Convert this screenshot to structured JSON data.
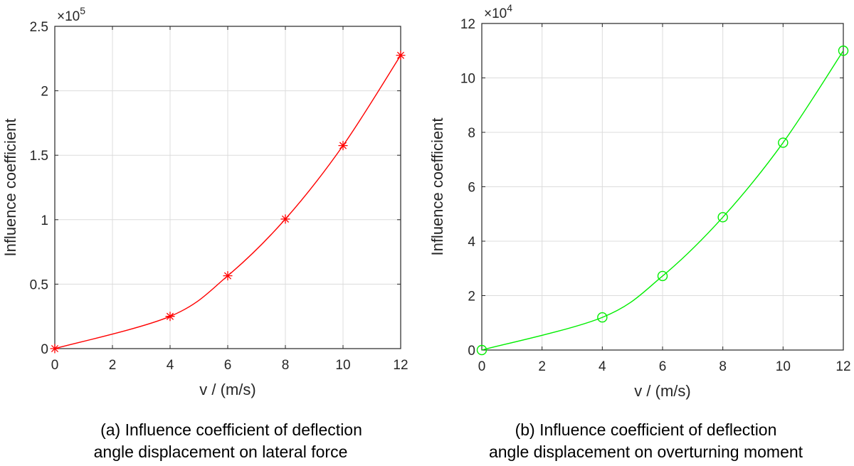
{
  "chart_data": [
    {
      "type": "line",
      "id": "a",
      "x": [
        0,
        4,
        6,
        8,
        10,
        12
      ],
      "series": [
        {
          "name": "lateral force",
          "values": [
            0,
            0.25,
            0.565,
            1.005,
            1.575,
            2.275
          ],
          "color": "#ff0000",
          "marker": "asterisk"
        }
      ],
      "xlabel": "v / (m/s)",
      "ylabel": "Influence coefficient",
      "xlim": [
        0,
        12
      ],
      "ylim": [
        0,
        2.5
      ],
      "xticks": [
        0,
        2,
        4,
        6,
        8,
        10,
        12
      ],
      "yticks": [
        0,
        0.5,
        1,
        1.5,
        2,
        2.5
      ],
      "ytick_labels": [
        "0",
        "0.5",
        "1",
        "1.5",
        "2",
        "2.5"
      ],
      "exponent": {
        "base": "×10",
        "power": "5"
      },
      "grid": true,
      "caption": [
        "(a) Influence coefficient of deflection",
        "angle displacement on lateral force"
      ]
    },
    {
      "type": "line",
      "id": "b",
      "x": [
        0,
        4,
        6,
        8,
        10,
        12
      ],
      "series": [
        {
          "name": "overturning moment",
          "values": [
            0,
            1.2,
            2.72,
            4.88,
            7.62,
            11.0
          ],
          "color": "#00ee00",
          "marker": "circle"
        }
      ],
      "xlabel": "v / (m/s)",
      "ylabel": "Influence coefficient",
      "xlim": [
        0,
        12
      ],
      "ylim": [
        0,
        12
      ],
      "xticks": [
        0,
        2,
        4,
        6,
        8,
        10,
        12
      ],
      "yticks": [
        0,
        2,
        4,
        6,
        8,
        10,
        12
      ],
      "ytick_labels": [
        "0",
        "2",
        "4",
        "6",
        "8",
        "10",
        "12"
      ],
      "exponent": {
        "base": "×10",
        "power": "4"
      },
      "grid": true,
      "caption": [
        "(b)  Influence coefficient of deflection",
        "angle displacement on overturning moment"
      ]
    }
  ]
}
